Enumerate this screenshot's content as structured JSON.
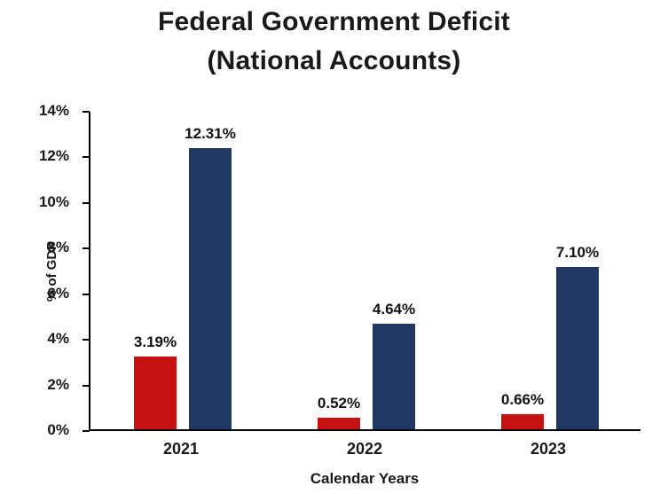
{
  "title_line1": "Federal Government Deficit",
  "title_line2": "(National Accounts)",
  "chart_data": {
    "type": "bar",
    "title": "Federal Government Deficit (National Accounts)",
    "categories": [
      "2021",
      "2022",
      "2023"
    ],
    "series": [
      {
        "name": "series_red",
        "color": "#c51111",
        "values": [
          3.19,
          0.52,
          0.66
        ]
      },
      {
        "name": "series_navy",
        "color": "#1f3864",
        "values": [
          12.31,
          4.64,
          7.1
        ]
      }
    ],
    "labels": [
      [
        "3.19%",
        "12.31%"
      ],
      [
        "0.52%",
        "4.64%"
      ],
      [
        "0.66%",
        "7.10%"
      ]
    ],
    "xlabel": "Calendar Years",
    "ylabel": "% of GDP",
    "yticks": [
      "14%",
      "12%",
      "10%",
      "8%",
      "6%",
      "4%",
      "2%",
      "0%"
    ],
    "ylim": [
      0,
      14
    ],
    "grid": false,
    "legend": "none",
    "colors": {
      "axis": "#000000",
      "text": "#191919"
    }
  }
}
